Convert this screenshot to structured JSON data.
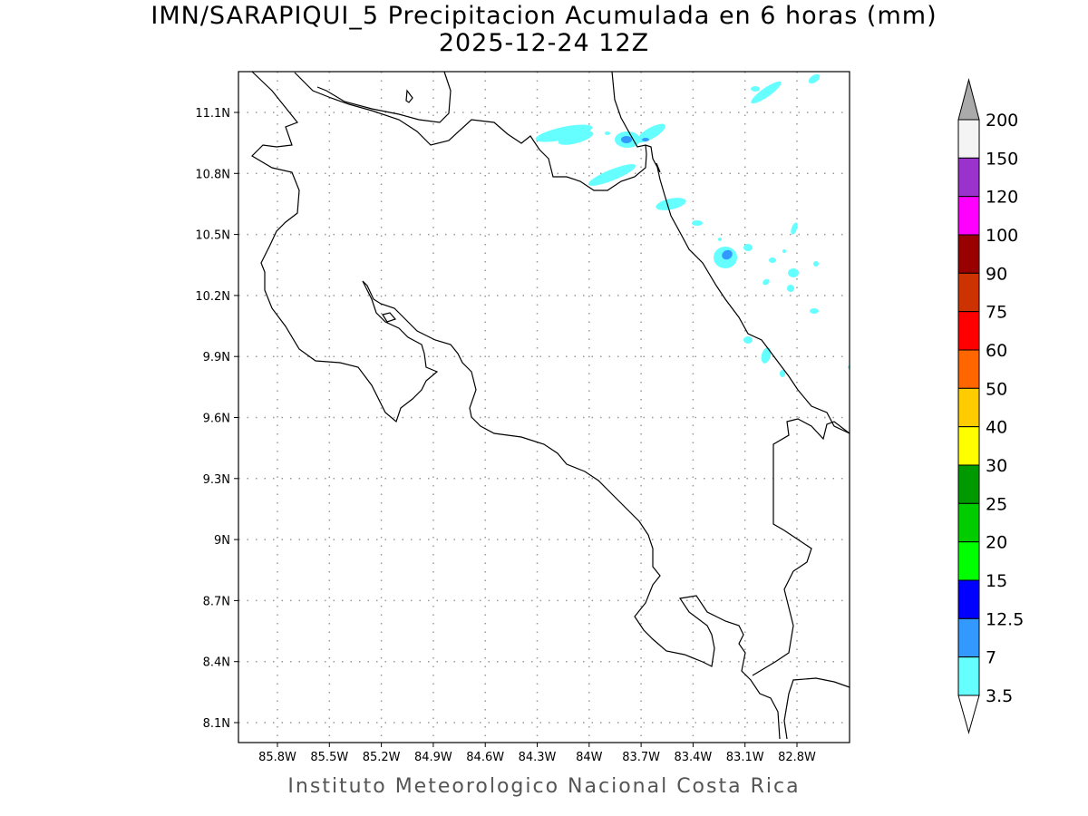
{
  "title": {
    "line1": "IMN/SARAPIQUI_5 Precipitacion Acumulada en 6 horas (mm)",
    "line2": "2025-12-24 12Z"
  },
  "map": {
    "lat_ticks": [
      "11.1N",
      "10.8N",
      "10.5N",
      "10.2N",
      "9.9N",
      "9.6N",
      "9.3N",
      "9N",
      "8.7N",
      "8.4N",
      "8.1N"
    ],
    "lon_ticks": [
      "85.8W",
      "85.5W",
      "85.2W",
      "84.9W",
      "84.6W",
      "84.3W",
      "84W",
      "83.7W",
      "83.4W",
      "83.1W",
      "82.8W"
    ],
    "grid": "dotted",
    "coastline_color": "#000000"
  },
  "colorbar": {
    "units": "mm",
    "levels": [
      "200",
      "150",
      "120",
      "100",
      "90",
      "75",
      "60",
      "50",
      "40",
      "30",
      "25",
      "20",
      "15",
      "12.5",
      "7",
      "3.5"
    ],
    "colors": [
      "#f4f4f4",
      "#9933cc",
      "#ff00ff",
      "#990000",
      "#cc3300",
      "#ff0000",
      "#ff6600",
      "#ffcc00",
      "#ffff00",
      "#009900",
      "#00cc00",
      "#00ff00",
      "#0000ff",
      "#3399ff",
      "#66ffff"
    ],
    "over_color": "#aaaaaa",
    "under_color": "#ffffff"
  },
  "footer": "Instituto Meteorologico Nacional Costa Rica"
}
